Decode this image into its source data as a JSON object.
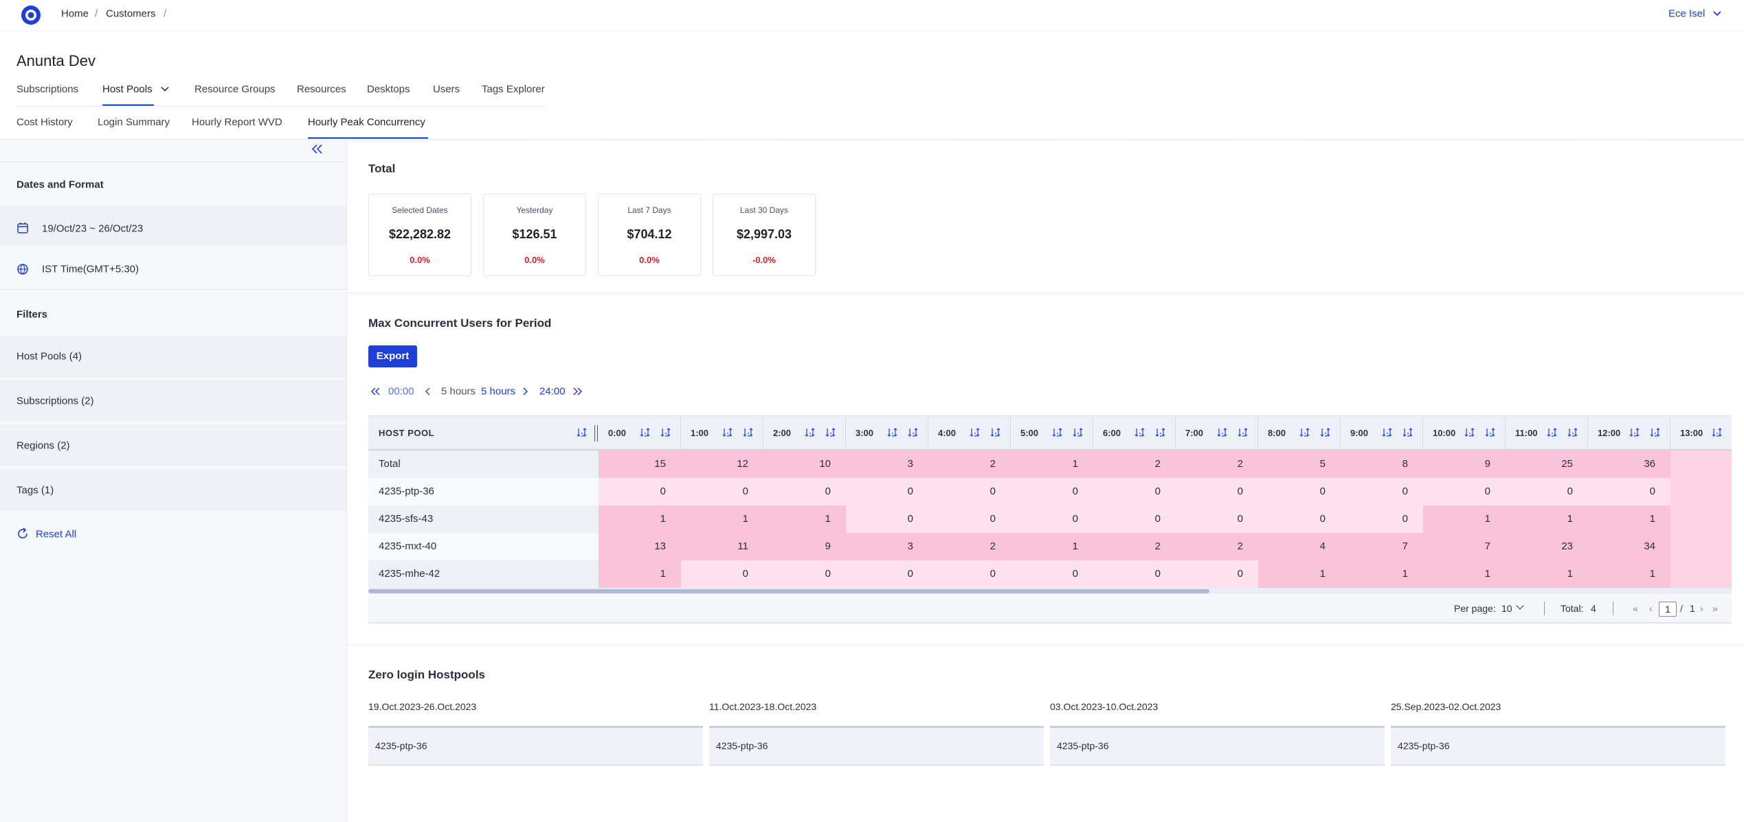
{
  "header": {
    "breadcrumb": [
      "Home",
      "Customers"
    ],
    "user": "Ece Isel"
  },
  "page": {
    "title": "Anunta Dev",
    "tabs": [
      "Subscriptions",
      "Host Pools",
      "Resource Groups",
      "Resources",
      "Desktops",
      "Users",
      "Tags Explorer"
    ],
    "sub_tabs": [
      "Cost History",
      "Login Summary",
      "Hourly Report WVD",
      "Hourly Peak Concurrency"
    ]
  },
  "sidebar": {
    "dates_title": "Dates and Format",
    "date_range": "19/Oct/23 ~ 26/Oct/23",
    "timezone": "IST Time(GMT+5:30)",
    "filters_title": "Filters",
    "filters": [
      "Host Pools (4)",
      "Subscriptions (2)",
      "Regions (2)",
      "Tags (1)"
    ],
    "reset": "Reset All"
  },
  "total": {
    "title": "Total",
    "cards": [
      {
        "label": "Selected Dates",
        "value": "$22,282.82",
        "change": "0.0%"
      },
      {
        "label": "Yesterday",
        "value": "$126.51",
        "change": "0.0%"
      },
      {
        "label": "Last 7 Days",
        "value": "$704.12",
        "change": "0.0%"
      },
      {
        "label": "Last 30 Days",
        "value": "$2,997.03",
        "change": "-0.0%"
      }
    ]
  },
  "concurrency": {
    "title": "Max Concurrent Users for Period",
    "export": "Export",
    "nav": {
      "start": "00:00",
      "prev": "5 hours",
      "next": "5 hours",
      "end": "24:00"
    },
    "host_pool_header": "HOST POOL",
    "hours": [
      "0:00",
      "1:00",
      "2:00",
      "3:00",
      "4:00",
      "5:00",
      "6:00",
      "7:00",
      "8:00",
      "9:00",
      "10:00",
      "11:00",
      "12:00",
      "13:00"
    ],
    "rows": [
      {
        "name": "Total",
        "values": [
          15,
          12,
          10,
          3,
          2,
          1,
          2,
          2,
          5,
          8,
          9,
          25,
          36,
          null
        ]
      },
      {
        "name": "4235-ptp-36",
        "values": [
          0,
          0,
          0,
          0,
          0,
          0,
          0,
          0,
          0,
          0,
          0,
          0,
          0,
          null
        ]
      },
      {
        "name": "4235-sfs-43",
        "values": [
          1,
          1,
          1,
          0,
          0,
          0,
          0,
          0,
          0,
          0,
          1,
          1,
          1,
          null
        ]
      },
      {
        "name": "4235-mxt-40",
        "values": [
          13,
          11,
          9,
          3,
          2,
          1,
          2,
          2,
          4,
          7,
          7,
          23,
          34,
          null
        ]
      },
      {
        "name": "4235-mhe-42",
        "values": [
          1,
          0,
          0,
          0,
          0,
          0,
          0,
          0,
          1,
          1,
          1,
          1,
          1,
          null
        ]
      }
    ],
    "per_page_label": "Per page:",
    "per_page": 10,
    "total_label": "Total:",
    "total": 4,
    "page": 1,
    "pages": 1
  },
  "zero_login": {
    "title": "Zero login Hostpools",
    "periods": [
      {
        "range": "19.Oct.2023-26.Oct.2023",
        "hostpools": [
          "4235-ptp-36"
        ]
      },
      {
        "range": "11.Oct.2023-18.Oct.2023",
        "hostpools": [
          "4235-ptp-36"
        ]
      },
      {
        "range": "03.Oct.2023-10.Oct.2023",
        "hostpools": [
          "4235-ptp-36"
        ]
      },
      {
        "range": "25.Sep.2023-02.Oct.2023",
        "hostpools": [
          "4235-ptp-36"
        ]
      }
    ]
  }
}
